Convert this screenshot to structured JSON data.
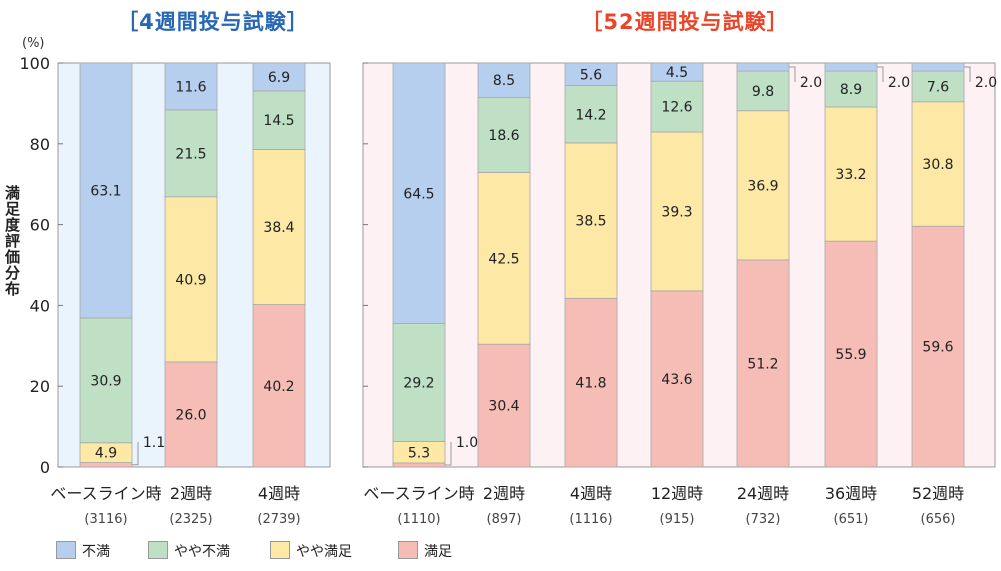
{
  "panels": [
    {
      "title": "［4週間投与試験］",
      "color": "#2767b4"
    },
    {
      "title": "［52週間投与試験］",
      "color": "#e8452a"
    }
  ],
  "y_label": "満足度評価分布",
  "unit": "(%)",
  "colors": {
    "fuman": "#b6cfee",
    "yaya_fuman": "#bfe0c5",
    "yaya_manzoku": "#fde8a6",
    "manzoku": "#f5bdb6",
    "bg_left": "#eaf4fd",
    "bg_right": "#fdf1f4"
  },
  "legend": [
    {
      "label": "不満",
      "color": "#b6cfee"
    },
    {
      "label": "やや不満",
      "color": "#bfe0c5"
    },
    {
      "label": "やや満足",
      "color": "#fde8a6"
    },
    {
      "label": "満足",
      "color": "#f5bdb6"
    }
  ],
  "chart_data": [
    {
      "type": "bar",
      "stacked": true,
      "title": "［4週間投与試験］",
      "ylabel": "満足度評価分布",
      "ylim": [
        0,
        100
      ],
      "yticks": [
        "0",
        "20",
        "40",
        "60",
        "80",
        "100"
      ],
      "categories": [
        "ベースライン時",
        "2週時",
        "4週時"
      ],
      "n_labels": [
        "(3116)",
        "(2325)",
        "(2739)"
      ],
      "series": [
        {
          "name": "満足",
          "values": [
            1.1,
            26.0,
            40.2
          ],
          "labels": [
            "1.1",
            "26.0",
            "40.2"
          ]
        },
        {
          "name": "やや満足",
          "values": [
            4.9,
            40.9,
            38.4
          ],
          "labels": [
            "4.9",
            "40.9",
            "38.4"
          ]
        },
        {
          "name": "やや不満",
          "values": [
            30.9,
            21.5,
            14.5
          ],
          "labels": [
            "30.9",
            "21.5",
            "14.5"
          ]
        },
        {
          "name": "不満",
          "values": [
            63.1,
            11.6,
            6.9
          ],
          "labels": [
            "63.1",
            "11.6",
            "6.9"
          ]
        }
      ]
    },
    {
      "type": "bar",
      "stacked": true,
      "title": "［52週間投与試験］",
      "ylim": [
        0,
        100
      ],
      "categories": [
        "ベースライン時",
        "2週時",
        "4週時",
        "12週時",
        "24週時",
        "36週時",
        "52週時"
      ],
      "n_labels": [
        "(1110)",
        "(897)",
        "(1116)",
        "(915)",
        "(732)",
        "(651)",
        "(656)"
      ],
      "series": [
        {
          "name": "満足",
          "values": [
            1.0,
            30.4,
            41.8,
            43.6,
            51.2,
            55.9,
            59.6
          ],
          "labels": [
            "1.0",
            "30.4",
            "41.8",
            "43.6",
            "51.2",
            "55.9",
            "59.6"
          ]
        },
        {
          "name": "やや満足",
          "values": [
            5.3,
            42.5,
            38.5,
            39.3,
            36.9,
            33.2,
            30.8
          ],
          "labels": [
            "5.3",
            "42.5",
            "38.5",
            "39.3",
            "36.9",
            "33.2",
            "30.8"
          ]
        },
        {
          "name": "やや不満",
          "values": [
            29.2,
            18.6,
            14.2,
            12.6,
            9.8,
            8.9,
            7.6
          ],
          "labels": [
            "29.2",
            "18.6",
            "14.2",
            "12.6",
            "9.8",
            "8.9",
            "7.6"
          ]
        },
        {
          "name": "不満",
          "values": [
            64.5,
            8.5,
            5.6,
            4.5,
            2.0,
            2.0,
            2.0
          ],
          "labels": [
            "64.5",
            "8.5",
            "5.6",
            "4.5",
            "2.0",
            "2.0",
            "2.0"
          ]
        }
      ]
    }
  ]
}
